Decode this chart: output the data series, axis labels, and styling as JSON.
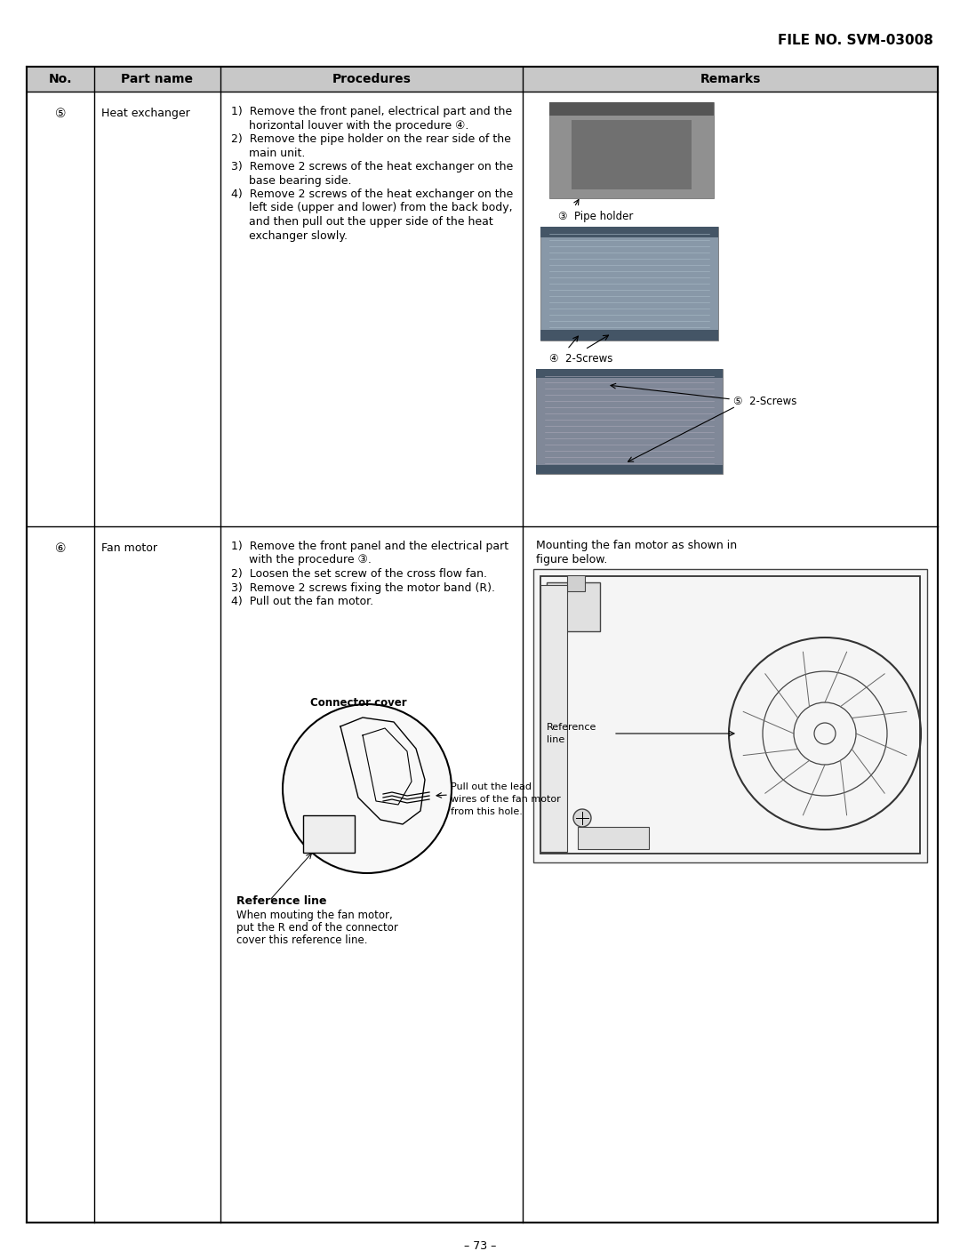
{
  "file_no": "FILE NO. SVM-03008",
  "page_number": "– 73 –",
  "table_headers": [
    "No.",
    "Part name",
    "Procedures",
    "Remarks"
  ],
  "row1_no": "⑤",
  "row1_part": "Heat exchanger",
  "row1_procs": [
    "1)  Remove the front panel, electrical part and the",
    "     horizontal louver with the procedure ④.",
    "2)  Remove the pipe holder on the rear side of the",
    "     main unit.",
    "3)  Remove 2 screws of the heat exchanger on the",
    "     base bearing side.",
    "4)  Remove 2 screws of the heat exchanger on the",
    "     left side (upper and lower) from the back body,",
    "     and then pull out the upper side of the heat",
    "     exchanger slowly."
  ],
  "lbl_pipe": "③  Pipe holder",
  "lbl_screws3": "④  2-Screws",
  "lbl_screws4": "⑤  2-Screws",
  "row2_no": "⑥",
  "row2_part": "Fan motor",
  "row2_procs": [
    "1)  Remove the front panel and the electrical part",
    "     with the procedure ③.",
    "2)  Loosen the set screw of the cross flow fan.",
    "3)  Remove 2 screws fixing the motor band (R).",
    "4)  Pull out the fan motor."
  ],
  "connector_cover_lbl": "Connector cover",
  "pull_out_lbl_1": "Pull out the lead",
  "pull_out_lbl_2": "wires of the fan motor",
  "pull_out_lbl_3": "from this hole.",
  "ref_line_bold": "Reference line",
  "ref_line_text_1": "When mouting the fan motor,",
  "ref_line_text_2": "put the R end of the connector",
  "ref_line_text_3": "cover this reference line.",
  "rem2_text_1": "Mounting the fan motor as shown in",
  "rem2_text_2": "figure below.",
  "rem2_ref_lbl_1": "Reference",
  "rem2_ref_lbl_2": "line",
  "bg": "#ffffff",
  "hdr_bg": "#c8c8c8",
  "black": "#000000"
}
